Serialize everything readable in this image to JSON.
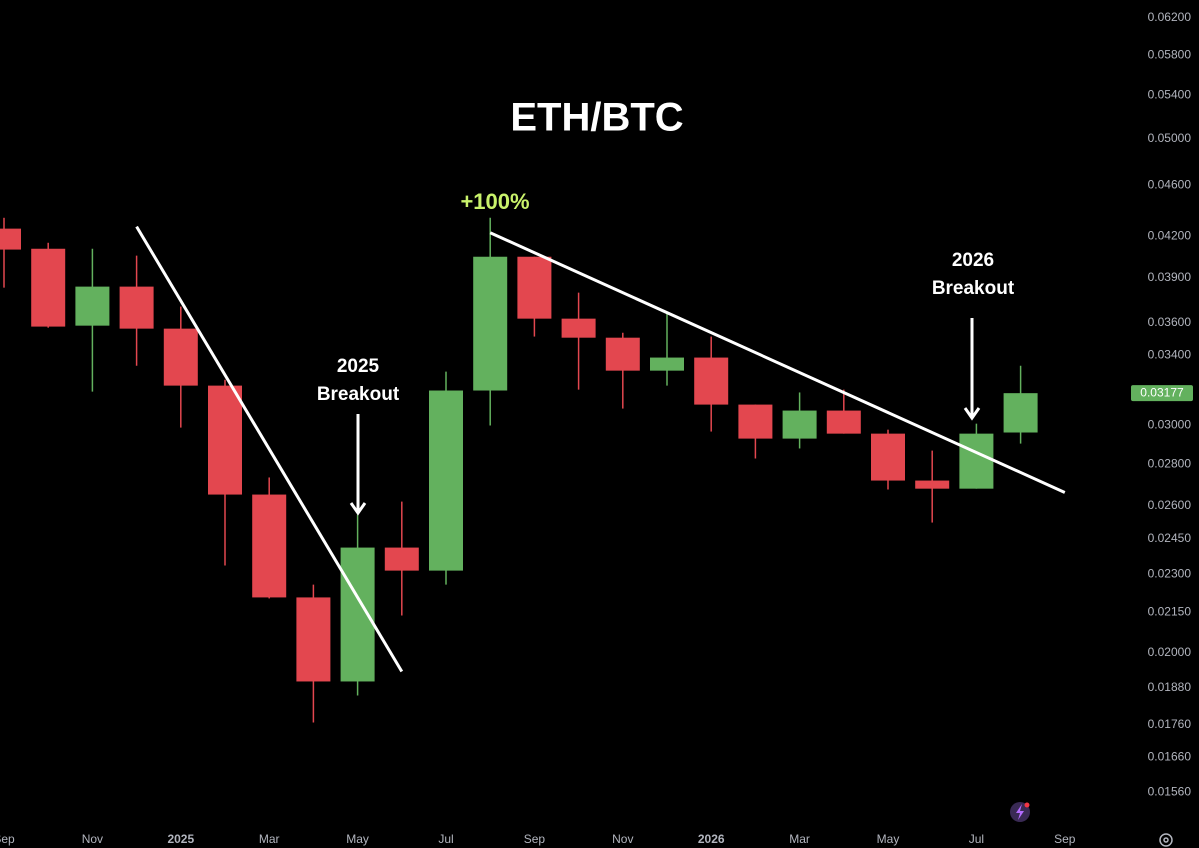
{
  "chart_data": {
    "type": "candlestick",
    "title": "ETH/BTC",
    "categories": [
      "Sep",
      null,
      "Nov",
      null,
      "2025",
      null,
      "Mar",
      null,
      "May",
      null,
      "Jul",
      null,
      "Sep",
      null,
      "Nov",
      null,
      "2026",
      null,
      "Mar",
      null,
      "May",
      null,
      "Jul",
      null,
      "Sep"
    ],
    "open": [
      0.04259,
      0.04109,
      0.03583,
      0.03841,
      0.03564,
      0.0322,
      0.02652,
      0.02208,
      0.01901,
      0.02413,
      0.02316,
      0.03192,
      0.04051,
      0.03628,
      0.03507,
      0.03307,
      0.03385,
      0.03113,
      0.0293,
      0.0308,
      0.02956,
      0.02719,
      0.0268,
      0.02962,
      null
    ],
    "high": [
      0.04342,
      0.04153,
      0.04109,
      0.04059,
      0.03707,
      0.03254,
      0.02734,
      0.02259,
      0.02559,
      0.02619,
      0.03301,
      0.04342,
      0.04051,
      0.038,
      0.03538,
      0.03674,
      0.03514,
      0.03113,
      0.03181,
      0.03197,
      0.02977,
      0.02868,
      0.03009,
      0.03336,
      null
    ],
    "low": [
      0.03834,
      0.0357,
      0.03186,
      0.03336,
      0.02988,
      0.02337,
      0.02204,
      0.01767,
      0.01854,
      0.02138,
      0.02259,
      0.02999,
      0.03514,
      0.03197,
      0.03091,
      0.0322,
      0.02967,
      0.02828,
      0.02879,
      0.02956,
      0.02676,
      0.02523,
      0.0268,
      0.02904,
      null
    ],
    "close": [
      0.04103,
      0.03577,
      0.03841,
      0.03564,
      0.0322,
      0.02652,
      0.02208,
      0.01901,
      0.02413,
      0.02316,
      0.03192,
      0.04051,
      0.03628,
      0.03507,
      0.03307,
      0.03385,
      0.03113,
      0.0293,
      0.0308,
      0.02956,
      0.02719,
      0.0268,
      0.02956,
      0.03177,
      null
    ],
    "up_color": "#63b15e",
    "down_color": "#e3474f",
    "log_scale": true,
    "ylim": [
      0.0148,
      0.064
    ],
    "yticks": [
      {
        "value": 0.062,
        "label": "0.06200"
      },
      {
        "value": 0.058,
        "label": "0.05800"
      },
      {
        "value": 0.054,
        "label": "0.05400"
      },
      {
        "value": 0.05,
        "label": "0.05000"
      },
      {
        "value": 0.046,
        "label": "0.04600"
      },
      {
        "value": 0.042,
        "label": "0.04200"
      },
      {
        "value": 0.039,
        "label": "0.03900"
      },
      {
        "value": 0.036,
        "label": "0.03600"
      },
      {
        "value": 0.034,
        "label": "0.03400"
      },
      {
        "value": 0.03,
        "label": "0.03000"
      },
      {
        "value": 0.028,
        "label": "0.02800"
      },
      {
        "value": 0.026,
        "label": "0.02600"
      },
      {
        "value": 0.0245,
        "label": "0.02450"
      },
      {
        "value": 0.023,
        "label": "0.02300"
      },
      {
        "value": 0.0215,
        "label": "0.02150"
      },
      {
        "value": 0.02,
        "label": "0.02000"
      },
      {
        "value": 0.0188,
        "label": "0.01880"
      },
      {
        "value": 0.0176,
        "label": "0.01760"
      },
      {
        "value": 0.0166,
        "label": "0.01660"
      },
      {
        "value": 0.0156,
        "label": "0.01560"
      }
    ],
    "last_price": 0.03177,
    "trendlines": [
      {
        "x": [
          3,
          9
        ],
        "values": [
          0.04274,
          0.01935
        ],
        "color": "#ffffff"
      },
      {
        "x": [
          11,
          24
        ],
        "values": [
          0.04228,
          0.02662
        ],
        "color": "#ffffff"
      }
    ],
    "annotations": {
      "peak": "+100%",
      "breakout_2025": [
        "2025",
        "Breakout"
      ],
      "breakout_2026": [
        "2026",
        "Breakout"
      ]
    }
  }
}
